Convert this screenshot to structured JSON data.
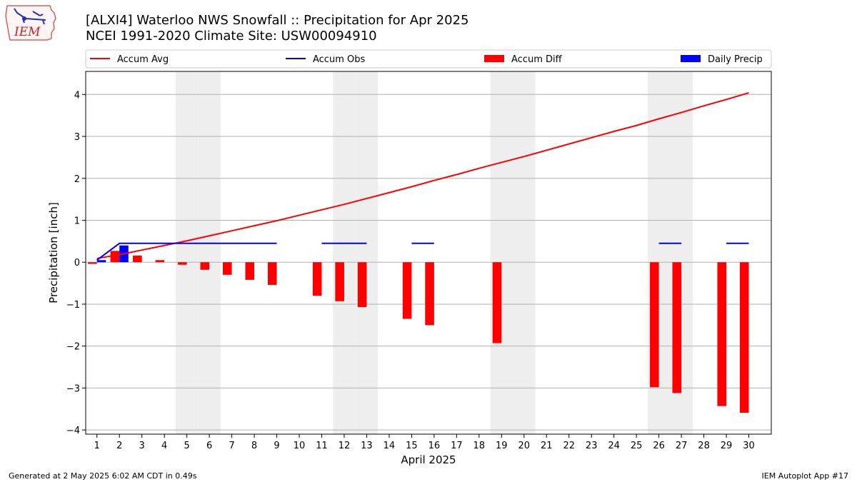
{
  "header": {
    "title_line1": "[ALXI4] Waterloo NWS Snowfall :: Precipitation for Apr 2025",
    "title_line2": "NCEI 1991-2020 Climate Site: USW00094910",
    "logo_text": "IEM"
  },
  "footer": {
    "left": "Generated at 2 May 2025 6:02 AM CDT in 0.49s",
    "right": "IEM Autoplot App #17"
  },
  "colors": {
    "avg": "#ff0000",
    "obs": "#0000ff",
    "diff": "#ff0000",
    "daily": "#0000ff",
    "weekend": "#eeeeee",
    "grid": "#b0b0b0"
  },
  "chart_data": {
    "type": "bar",
    "xlabel": "April 2025",
    "ylabel": "Precipitation [inch]",
    "xlim": [
      0.5,
      31
    ],
    "ylim": [
      -4.1,
      4.55
    ],
    "yticks": [
      -4,
      -3,
      -2,
      -1,
      0,
      1,
      2,
      3,
      4
    ],
    "xticks": [
      1,
      2,
      3,
      4,
      5,
      6,
      7,
      8,
      9,
      10,
      11,
      12,
      13,
      14,
      15,
      16,
      17,
      18,
      19,
      20,
      21,
      22,
      23,
      24,
      25,
      26,
      27,
      28,
      29,
      30
    ],
    "grid": "horizontal",
    "legend_placement": "top",
    "weekend_days": [
      5,
      6,
      12,
      13,
      19,
      20,
      26,
      27
    ],
    "legend": [
      "Accum Avg",
      "Accum Obs",
      "Accum Diff",
      "Daily Precip"
    ],
    "accum_avg": {
      "name": "Accum Avg",
      "x": [
        1,
        2,
        3,
        4,
        5,
        6,
        7,
        8,
        9,
        10,
        11,
        12,
        13,
        14,
        15,
        16,
        17,
        18,
        19,
        20,
        21,
        22,
        23,
        24,
        25,
        26,
        27,
        28,
        29,
        30
      ],
      "values": [
        0.09,
        0.18,
        0.29,
        0.4,
        0.51,
        0.63,
        0.75,
        0.87,
        0.99,
        1.12,
        1.25,
        1.38,
        1.52,
        1.66,
        1.8,
        1.95,
        2.09,
        2.24,
        2.38,
        2.52,
        2.67,
        2.82,
        2.97,
        3.12,
        3.26,
        3.42,
        3.57,
        3.73,
        3.88,
        4.04
      ]
    },
    "accum_obs": {
      "name": "Accum Obs",
      "line": {
        "x": [
          1,
          2,
          3,
          4,
          5,
          6,
          7,
          8,
          9
        ],
        "values": [
          0.05,
          0.45,
          0.45,
          0.45,
          0.45,
          0.45,
          0.45,
          0.45,
          0.45
        ]
      },
      "segments": [
        {
          "x": [
            11,
            13
          ],
          "value": 0.45
        },
        {
          "x": [
            15,
            16
          ],
          "value": 0.45
        },
        {
          "x": [
            26,
            27
          ],
          "value": 0.45
        },
        {
          "x": [
            29,
            30
          ],
          "value": 0.45
        }
      ]
    },
    "accum_diff": {
      "name": "Accum Diff",
      "x": [
        1,
        2,
        3,
        4,
        5,
        6,
        7,
        8,
        9,
        11,
        12,
        13,
        15,
        16,
        19,
        26,
        27,
        29,
        30
      ],
      "values": [
        -0.04,
        0.27,
        0.16,
        0.05,
        -0.06,
        -0.18,
        -0.3,
        -0.42,
        -0.54,
        -0.8,
        -0.93,
        -1.07,
        -1.35,
        -1.5,
        -1.93,
        -2.98,
        -3.12,
        -3.43,
        -3.59
      ]
    },
    "daily_precip": {
      "name": "Daily Precip",
      "x": [
        1,
        2
      ],
      "values": [
        0.05,
        0.4
      ]
    }
  }
}
